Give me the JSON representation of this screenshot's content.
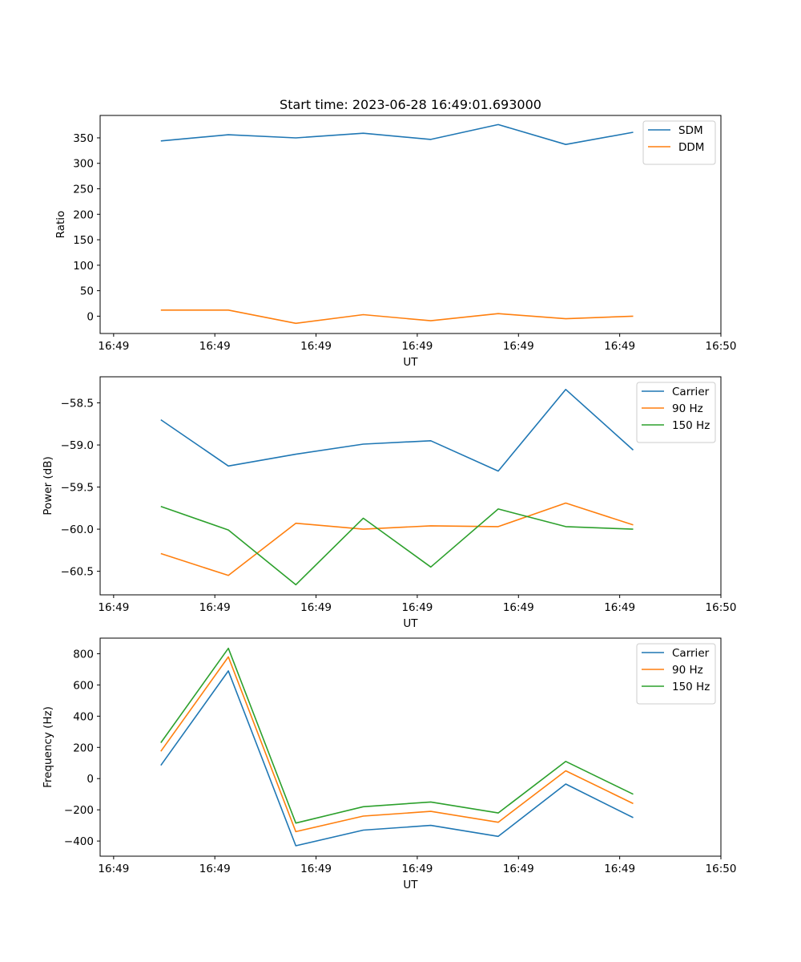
{
  "figure_title": "Start time: 2023-06-28 16:49:01.693000",
  "colors": {
    "blue": "#1f77b4",
    "orange": "#ff7f0e",
    "green": "#2ca02c"
  },
  "chart_data": [
    {
      "type": "line",
      "title": "Start time: 2023-06-28 16:49:01.693000",
      "xlabel": "UT",
      "ylabel": "Ratio",
      "x": [
        0.9,
        1.9,
        2.9,
        3.9,
        4.9,
        5.9,
        6.9,
        7.9
      ],
      "xlim": [
        0.0,
        9.2
      ],
      "x_ticks": [
        0.2,
        1.7,
        3.2,
        4.7,
        6.2,
        7.7,
        9.2
      ],
      "x_tick_labels": [
        "16:49",
        "16:49",
        "16:49",
        "16:49",
        "16:49",
        "16:49",
        "16:50"
      ],
      "ylim": [
        -34,
        394
      ],
      "y_ticks": [
        0,
        50,
        100,
        150,
        200,
        250,
        300,
        350
      ],
      "y_tick_labels": [
        "0",
        "50",
        "100",
        "150",
        "200",
        "250",
        "300",
        "350"
      ],
      "legend_position": "upper right",
      "series": [
        {
          "name": "SDM",
          "color": "#1f77b4",
          "values": [
            344,
            356,
            350,
            359,
            347,
            376,
            337,
            361
          ]
        },
        {
          "name": "DDM",
          "color": "#ff7f0e",
          "values": [
            12,
            12,
            -14,
            3,
            -9,
            5,
            -5,
            0
          ]
        }
      ]
    },
    {
      "type": "line",
      "title": "",
      "xlabel": "UT",
      "ylabel": "Power (dB)",
      "x": [
        0.9,
        1.9,
        2.9,
        3.9,
        4.9,
        5.9,
        6.9,
        7.9
      ],
      "xlim": [
        0.0,
        9.2
      ],
      "x_ticks": [
        0.2,
        1.7,
        3.2,
        4.7,
        6.2,
        7.7,
        9.2
      ],
      "x_tick_labels": [
        "16:49",
        "16:49",
        "16:49",
        "16:49",
        "16:49",
        "16:49",
        "16:50"
      ],
      "ylim": [
        -60.78,
        -58.19
      ],
      "y_ticks": [
        -60.5,
        -60.0,
        -59.5,
        -59.0,
        -58.5
      ],
      "y_tick_labels": [
        "−60.5",
        "−60.0",
        "−59.5",
        "−59.0",
        "−58.5"
      ],
      "legend_position": "upper right",
      "series": [
        {
          "name": "Carrier",
          "color": "#1f77b4",
          "values": [
            -58.7,
            -59.25,
            -59.11,
            -58.99,
            -58.95,
            -59.31,
            -58.34,
            -59.06
          ]
        },
        {
          "name": "90 Hz",
          "color": "#ff7f0e",
          "values": [
            -60.29,
            -60.55,
            -59.93,
            -60.0,
            -59.96,
            -59.97,
            -59.69,
            -59.95
          ]
        },
        {
          "name": "150 Hz",
          "color": "#2ca02c",
          "values": [
            -59.73,
            -60.01,
            -60.66,
            -59.87,
            -60.45,
            -59.76,
            -59.97,
            -60.0
          ]
        }
      ]
    },
    {
      "type": "line",
      "title": "",
      "xlabel": "UT",
      "ylabel": "Frequency (Hz)",
      "x": [
        0.9,
        1.9,
        2.9,
        3.9,
        4.9,
        5.9,
        6.9,
        7.9
      ],
      "xlim": [
        0.0,
        9.2
      ],
      "x_ticks": [
        0.2,
        1.7,
        3.2,
        4.7,
        6.2,
        7.7,
        9.2
      ],
      "x_tick_labels": [
        "16:49",
        "16:49",
        "16:49",
        "16:49",
        "16:49",
        "16:49",
        "16:50"
      ],
      "ylim": [
        -497,
        900
      ],
      "y_ticks": [
        -400,
        -200,
        0,
        200,
        400,
        600,
        800
      ],
      "y_tick_labels": [
        "−400",
        "−200",
        "0",
        "200",
        "400",
        "600",
        "800"
      ],
      "legend_position": "upper right",
      "series": [
        {
          "name": "Carrier",
          "color": "#1f77b4",
          "values": [
            85,
            690,
            -430,
            -330,
            -300,
            -370,
            -35,
            -250
          ]
        },
        {
          "name": "90 Hz",
          "color": "#ff7f0e",
          "values": [
            175,
            780,
            -340,
            -240,
            -210,
            -280,
            50,
            -160
          ]
        },
        {
          "name": "150 Hz",
          "color": "#2ca02c",
          "values": [
            230,
            835,
            -285,
            -180,
            -150,
            -220,
            110,
            -100
          ]
        }
      ]
    }
  ]
}
